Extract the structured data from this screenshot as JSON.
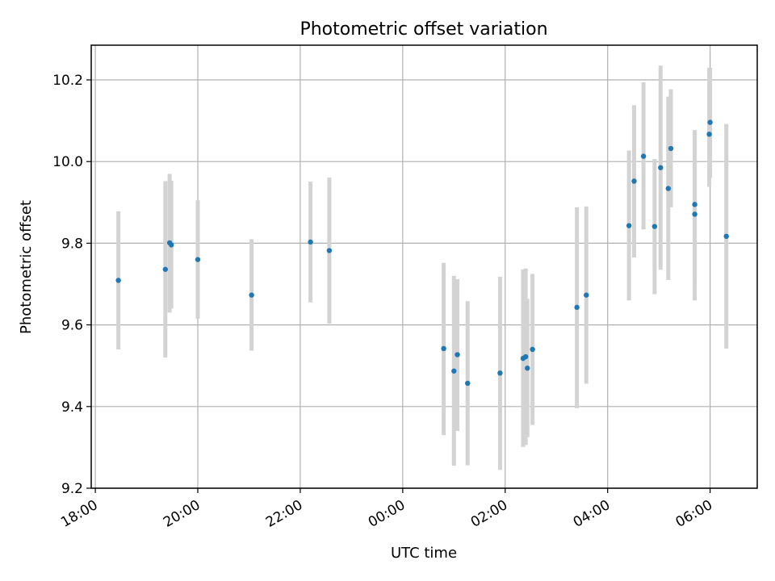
{
  "chart_data": {
    "type": "scatter",
    "title": "Photometric offset variation",
    "xlabel": "UTC time",
    "ylabel": "Photometric offset",
    "x_axis_kind": "time",
    "xlim": [
      "17:55",
      "06:55"
    ],
    "xlim_hours": [
      -0.08,
      12.92
    ],
    "ylim": [
      9.2,
      10.285
    ],
    "grid": true,
    "x_ticks": [
      {
        "label": "18:00",
        "hours": 0
      },
      {
        "label": "20:00",
        "hours": 2
      },
      {
        "label": "22:00",
        "hours": 4
      },
      {
        "label": "00:00",
        "hours": 6
      },
      {
        "label": "02:00",
        "hours": 8
      },
      {
        "label": "04:00",
        "hours": 10
      },
      {
        "label": "06:00",
        "hours": 12
      }
    ],
    "y_ticks": [
      {
        "label": "9.2",
        "value": 9.2
      },
      {
        "label": "9.4",
        "value": 9.4
      },
      {
        "label": "9.6",
        "value": 9.6
      },
      {
        "label": "9.8",
        "value": 9.8
      },
      {
        "label": "10.0",
        "value": 10.0
      },
      {
        "label": "10.2",
        "value": 10.2
      }
    ],
    "colors": {
      "marker": "#1f77b4",
      "errorbar": "#d3d3d3",
      "grid": "#b0b0b0"
    },
    "points": [
      {
        "time": "18:27",
        "y": 9.709,
        "ylow": 9.54,
        "yhigh": 9.878
      },
      {
        "time": "19:22",
        "y": 9.736,
        "ylow": 9.52,
        "yhigh": 9.952
      },
      {
        "time": "19:27",
        "y": 9.801,
        "ylow": 9.63,
        "yhigh": 9.97
      },
      {
        "time": "19:29",
        "y": 9.796,
        "ylow": 9.64,
        "yhigh": 9.953
      },
      {
        "time": "20:00",
        "y": 9.76,
        "ylow": 9.615,
        "yhigh": 9.905
      },
      {
        "time": "21:03",
        "y": 9.673,
        "ylow": 9.537,
        "yhigh": 9.81
      },
      {
        "time": "22:12",
        "y": 9.803,
        "ylow": 9.655,
        "yhigh": 9.951
      },
      {
        "time": "22:34",
        "y": 9.782,
        "ylow": 9.603,
        "yhigh": 9.961
      },
      {
        "time": "00:48",
        "y": 9.542,
        "ylow": 9.33,
        "yhigh": 9.752
      },
      {
        "time": "01:00",
        "y": 9.487,
        "ylow": 9.255,
        "yhigh": 9.72
      },
      {
        "time": "01:04",
        "y": 9.527,
        "ylow": 9.34,
        "yhigh": 9.712
      },
      {
        "time": "01:16",
        "y": 9.457,
        "ylow": 9.256,
        "yhigh": 9.658
      },
      {
        "time": "01:54",
        "y": 9.482,
        "ylow": 9.245,
        "yhigh": 9.718
      },
      {
        "time": "02:21",
        "y": 9.518,
        "ylow": 9.301,
        "yhigh": 9.736
      },
      {
        "time": "02:24",
        "y": 9.522,
        "ylow": 9.306,
        "yhigh": 9.738
      },
      {
        "time": "02:26",
        "y": 9.494,
        "ylow": 9.325,
        "yhigh": 9.664
      },
      {
        "time": "02:32",
        "y": 9.54,
        "ylow": 9.355,
        "yhigh": 9.725
      },
      {
        "time": "03:24",
        "y": 9.643,
        "ylow": 9.396,
        "yhigh": 9.888
      },
      {
        "time": "03:35",
        "y": 9.673,
        "ylow": 9.456,
        "yhigh": 9.89
      },
      {
        "time": "04:25",
        "y": 9.843,
        "ylow": 9.66,
        "yhigh": 10.027
      },
      {
        "time": "04:31",
        "y": 9.952,
        "ylow": 9.765,
        "yhigh": 10.138
      },
      {
        "time": "04:42",
        "y": 10.013,
        "ylow": 9.834,
        "yhigh": 10.194
      },
      {
        "time": "04:55",
        "y": 9.841,
        "ylow": 9.675,
        "yhigh": 10.006
      },
      {
        "time": "05:02",
        "y": 9.985,
        "ylow": 9.735,
        "yhigh": 10.235
      },
      {
        "time": "05:11",
        "y": 9.934,
        "ylow": 9.71,
        "yhigh": 10.159
      },
      {
        "time": "05:14",
        "y": 10.032,
        "ylow": 9.888,
        "yhigh": 10.177
      },
      {
        "time": "05:42",
        "y": 9.871,
        "ylow": 9.66,
        "yhigh": 10.077
      },
      {
        "time": "05:42",
        "y": 9.895,
        "ylow": 9.712,
        "yhigh": 10.077
      },
      {
        "time": "05:59",
        "y": 10.067,
        "ylow": 9.938,
        "yhigh": 10.23
      },
      {
        "time": "06:00",
        "y": 10.096,
        "ylow": 9.96,
        "yhigh": 10.23
      },
      {
        "time": "06:19",
        "y": 9.817,
        "ylow": 9.542,
        "yhigh": 10.092
      }
    ]
  }
}
